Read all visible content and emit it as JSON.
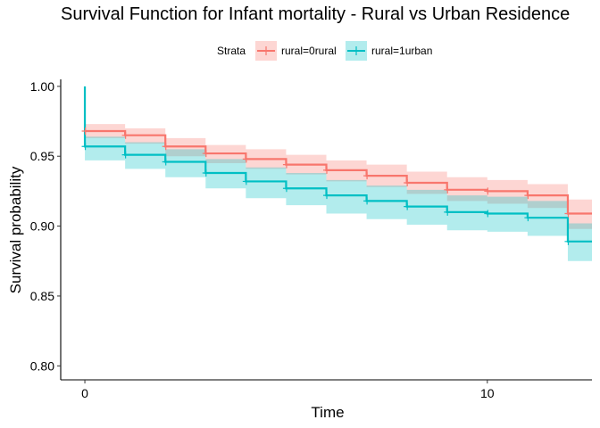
{
  "chart_data": {
    "type": "line",
    "title": "Survival Function for Infant mortality - Rural vs Urban Residence",
    "xlabel": "Time",
    "ylabel": "Survival probability",
    "xlim": [
      -0.6,
      12.6
    ],
    "ylim": [
      0.79,
      1.005
    ],
    "x_ticks": [
      0,
      10
    ],
    "y_ticks": [
      0.8,
      0.85,
      0.9,
      0.95,
      1.0
    ],
    "x_tick_labels": [
      "0",
      "10"
    ],
    "y_tick_labels": [
      "0.80",
      "0.85",
      "0.90",
      "0.95",
      "1.00"
    ],
    "grid": false,
    "legend": {
      "title": "Strata",
      "placement": "top"
    },
    "series": [
      {
        "name": "rural=0rural",
        "color": "#F8766D",
        "fill": "#F8766D",
        "steps": [
          {
            "x": 0,
            "y": 0.968,
            "lo": 0.963,
            "hi": 0.973
          },
          {
            "x": 1,
            "y": 0.965,
            "lo": 0.959,
            "hi": 0.97
          },
          {
            "x": 2,
            "y": 0.957,
            "lo": 0.95,
            "hi": 0.963
          },
          {
            "x": 3,
            "y": 0.952,
            "lo": 0.945,
            "hi": 0.958
          },
          {
            "x": 4,
            "y": 0.948,
            "lo": 0.941,
            "hi": 0.955
          },
          {
            "x": 5,
            "y": 0.944,
            "lo": 0.937,
            "hi": 0.951
          },
          {
            "x": 6,
            "y": 0.94,
            "lo": 0.932,
            "hi": 0.947
          },
          {
            "x": 7,
            "y": 0.936,
            "lo": 0.928,
            "hi": 0.944
          },
          {
            "x": 8,
            "y": 0.931,
            "lo": 0.923,
            "hi": 0.939
          },
          {
            "x": 9,
            "y": 0.926,
            "lo": 0.918,
            "hi": 0.935
          },
          {
            "x": 10,
            "y": 0.925,
            "lo": 0.916,
            "hi": 0.933
          },
          {
            "x": 11,
            "y": 0.922,
            "lo": 0.913,
            "hi": 0.93
          },
          {
            "x": 12,
            "y": 0.909,
            "lo": 0.898,
            "hi": 0.919
          }
        ],
        "censor_x": [
          0,
          1,
          2,
          3,
          4,
          5,
          6,
          7,
          8,
          9,
          10,
          11,
          12
        ]
      },
      {
        "name": "rural=1urban",
        "color": "#00BFC4",
        "fill": "#00BFC4",
        "start_y": 1.0,
        "steps": [
          {
            "x": 0,
            "y": 0.957,
            "lo": 0.947,
            "hi": 0.964
          },
          {
            "x": 1,
            "y": 0.951,
            "lo": 0.941,
            "hi": 0.96
          },
          {
            "x": 2,
            "y": 0.946,
            "lo": 0.935,
            "hi": 0.955
          },
          {
            "x": 3,
            "y": 0.938,
            "lo": 0.927,
            "hi": 0.948
          },
          {
            "x": 4,
            "y": 0.932,
            "lo": 0.92,
            "hi": 0.942
          },
          {
            "x": 5,
            "y": 0.927,
            "lo": 0.915,
            "hi": 0.938
          },
          {
            "x": 6,
            "y": 0.922,
            "lo": 0.909,
            "hi": 0.933
          },
          {
            "x": 7,
            "y": 0.918,
            "lo": 0.905,
            "hi": 0.929
          },
          {
            "x": 8,
            "y": 0.914,
            "lo": 0.901,
            "hi": 0.926
          },
          {
            "x": 9,
            "y": 0.91,
            "lo": 0.897,
            "hi": 0.922
          },
          {
            "x": 10,
            "y": 0.909,
            "lo": 0.896,
            "hi": 0.921
          },
          {
            "x": 11,
            "y": 0.906,
            "lo": 0.893,
            "hi": 0.918
          },
          {
            "x": 12,
            "y": 0.889,
            "lo": 0.875,
            "hi": 0.902
          }
        ],
        "censor_x": [
          0,
          1,
          2,
          3,
          4,
          5,
          6,
          7,
          8,
          9,
          10,
          11,
          12
        ]
      }
    ]
  }
}
